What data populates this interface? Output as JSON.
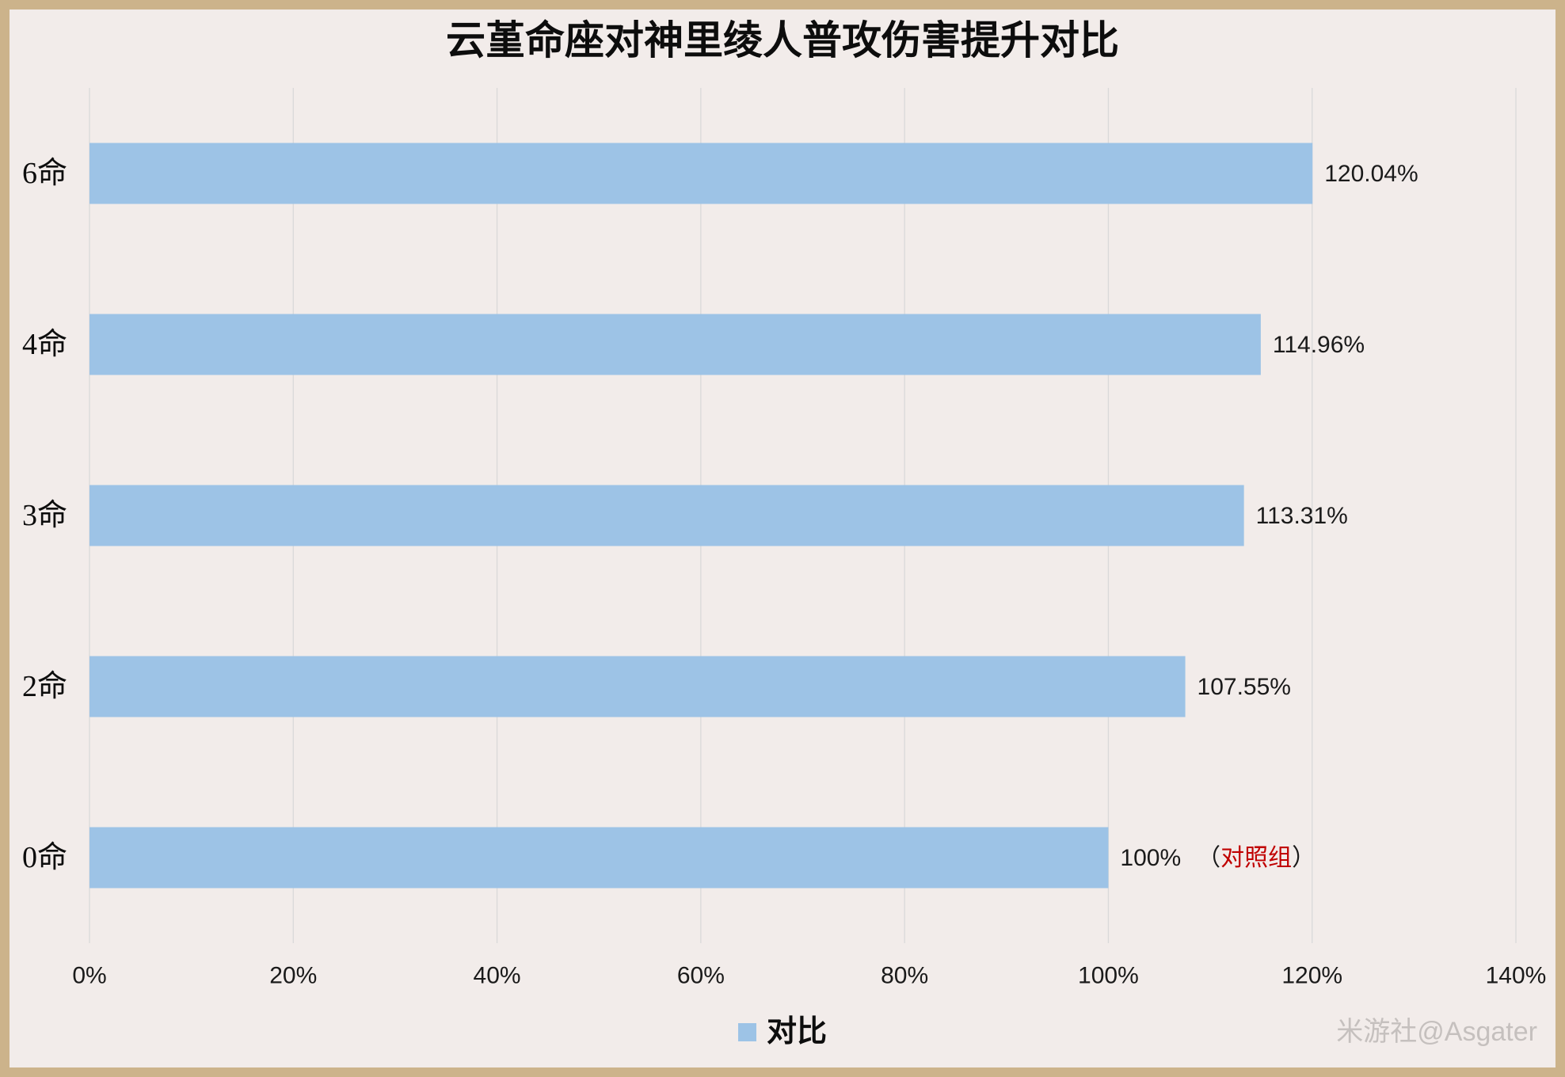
{
  "watermark": "米游社@Asgater",
  "colors": {
    "background": "#f2ecea",
    "border": "#ccb38b",
    "bar": "#9dc3e6",
    "grid": "#d9d9d9",
    "annotation": "#c00000",
    "watermark": "#c5c0be"
  },
  "chart_data": {
    "type": "bar",
    "orientation": "horizontal",
    "title": "云堇命座对神里绫人普攻伤害提升对比",
    "xlabel": "",
    "ylabel": "",
    "categories": [
      "6命",
      "4命",
      "3命",
      "2命",
      "0命"
    ],
    "series": [
      {
        "name": "对比",
        "values": [
          120.04,
          114.96,
          113.31,
          107.55,
          100
        ],
        "labels": [
          "120.04%",
          "114.96%",
          "113.31%",
          "107.55%",
          "100%"
        ]
      }
    ],
    "xlim": [
      0,
      140
    ],
    "xticks": [
      0,
      20,
      40,
      60,
      80,
      100,
      120,
      140
    ],
    "xtick_labels": [
      "0%",
      "20%",
      "40%",
      "60%",
      "80%",
      "100%",
      "120%",
      "140%"
    ],
    "grid": "vertical",
    "legend": {
      "placement": "bottom"
    },
    "annotations": [
      {
        "bar_index": 4,
        "open": "（",
        "text": "对照组",
        "close": "）"
      }
    ]
  }
}
